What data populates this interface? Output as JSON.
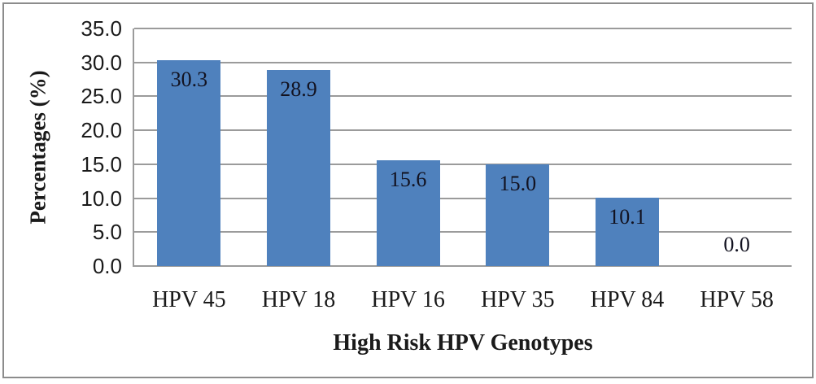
{
  "chart_data": {
    "type": "bar",
    "categories": [
      "HPV 45",
      "HPV 18",
      "HPV 16",
      "HPV 35",
      "HPV 84",
      "HPV 58"
    ],
    "values": [
      30.3,
      28.9,
      15.6,
      15.0,
      10.1,
      0.0
    ],
    "value_labels": [
      "30.3",
      "28.9",
      "15.6",
      "15.0",
      "10.1",
      "0.0"
    ],
    "title": "",
    "xlabel": "High Risk HPV Genotypes",
    "ylabel": "Percentages (%)",
    "ylim": [
      0,
      35
    ],
    "yticks": [
      0,
      5,
      10,
      15,
      20,
      25,
      30,
      35
    ],
    "ytick_labels": [
      "0.0",
      "5.0",
      "10.0",
      "15.0",
      "20.0",
      "25.0",
      "30.0",
      "35.0"
    ],
    "grid": "horizontal",
    "legend": "none",
    "data_label_position": "inside-end",
    "bar_color": "#4F81BD",
    "gridline_color": "#9B9B9B",
    "axis_color": "#9B9B9B",
    "text_color": "#1A1A1A",
    "figure_border_color": "#8C8C8C"
  }
}
